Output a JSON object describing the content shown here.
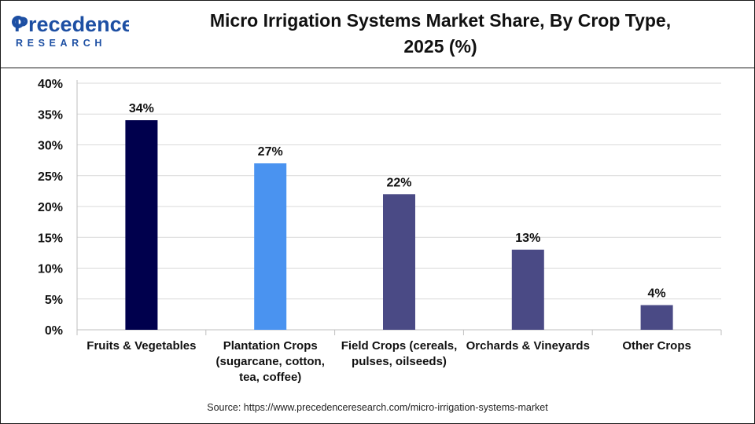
{
  "brand": {
    "logo_text_top": "Precedence",
    "logo_text_bottom": "RESEARCH"
  },
  "header": {
    "title_line1": "Micro Irrigation Systems Market Share, By Crop Type,",
    "title_line2": "2025 (%)"
  },
  "source": "Source: https://www.precedenceresearch.com/micro-irrigation-systems-market",
  "colors": {
    "dark_navy": "#00004D",
    "sky_blue": "#4A93F0",
    "slate_blue": "#4A4A85"
  },
  "chart_data": {
    "type": "bar",
    "categories": [
      [
        "Fruits & Vegetables"
      ],
      [
        "Plantation Crops",
        "(sugarcane, cotton,",
        "tea, coffee)"
      ],
      [
        "Field Crops (cereals,",
        "pulses, oilseeds)"
      ],
      [
        "Orchards & Vineyards"
      ],
      [
        "Other Crops"
      ]
    ],
    "values": [
      34,
      27,
      22,
      13,
      4
    ],
    "data_labels": [
      "34%",
      "27%",
      "22%",
      "13%",
      "4%"
    ],
    "bar_colors": [
      "#00004D",
      "#4A93F0",
      "#4A4A85",
      "#4A4A85",
      "#4A4A85"
    ],
    "ylim": [
      0,
      40
    ],
    "yticks": [
      0,
      5,
      10,
      15,
      20,
      25,
      30,
      35,
      40
    ],
    "ytick_labels": [
      "0%",
      "5%",
      "10%",
      "15%",
      "20%",
      "25%",
      "30%",
      "35%",
      "40%"
    ],
    "grid": true,
    "xlabel": "",
    "ylabel": ""
  }
}
